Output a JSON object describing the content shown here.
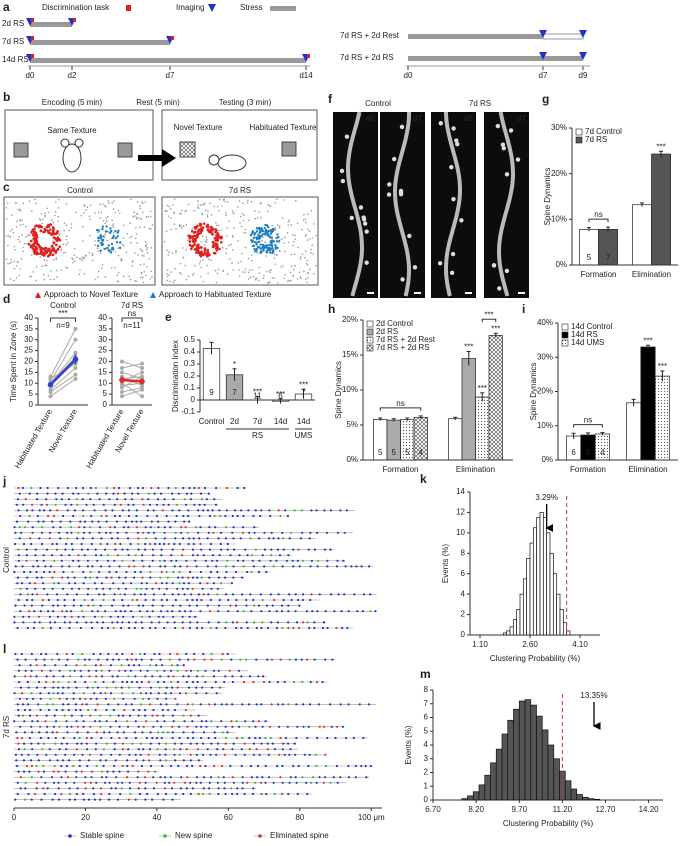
{
  "panel_labels": [
    "a",
    "b",
    "c",
    "d",
    "e",
    "f",
    "g",
    "h",
    "i",
    "j",
    "k",
    "l",
    "m"
  ],
  "panel_a": {
    "legend": {
      "task": "Discrimination task",
      "imaging": "Imaging",
      "stress": "Stress"
    },
    "left_rows": [
      "2d RS",
      "7d RS",
      "14d RS"
    ],
    "left_days": [
      "d0",
      "d2",
      "d7",
      "d14"
    ],
    "right_rows": [
      "7d RS + 2d Rest",
      "7d RS + 2d RS"
    ],
    "right_days": [
      "d0",
      "d7",
      "d9"
    ]
  },
  "panel_b": {
    "phases": [
      "Encoding (5 min)",
      "Rest (5 min)",
      "Testing (3 min)"
    ],
    "same": "Same Texture",
    "novel": "Novel Texture",
    "habituated": "Habituated Texture"
  },
  "panel_c": {
    "groups": [
      "Control",
      "7d RS"
    ],
    "legend": [
      "Approach to Novel Texture",
      "Approach to Habituated Texture"
    ]
  },
  "panel_f": {
    "groups": [
      "Control",
      "7d RS"
    ],
    "days": [
      "d0",
      "d7",
      "d0",
      "d7"
    ]
  },
  "chart_data": [
    {
      "type": "paired",
      "title": "Control",
      "ylabel": "Time Spent in Zone (s)",
      "categories": [
        "Habituated Texture",
        "Novel Texture"
      ],
      "ylim": [
        0,
        40
      ],
      "yticks": [
        0,
        5,
        10,
        15,
        20,
        25,
        30,
        35,
        40
      ],
      "subjects": [
        [
          4,
          12
        ],
        [
          6,
          14
        ],
        [
          7,
          17
        ],
        [
          9,
          20
        ],
        [
          10,
          22
        ],
        [
          10,
          24
        ],
        [
          11,
          30
        ],
        [
          12,
          19
        ],
        [
          13,
          35
        ]
      ],
      "mean": [
        9.3,
        21
      ],
      "mean_error": [
        1,
        2.3
      ],
      "color": "#3340cc",
      "significance": "***",
      "n_label": "n=9"
    },
    {
      "type": "paired",
      "title": "7d RS",
      "categories": [
        "Habituated Texture",
        "Novel Texture"
      ],
      "ylim": [
        0,
        40
      ],
      "yticks": [
        0,
        5,
        10,
        15,
        20,
        25,
        30,
        35,
        40
      ],
      "subjects": [
        [
          4,
          7
        ],
        [
          6,
          8
        ],
        [
          8,
          13
        ],
        [
          9,
          10
        ],
        [
          10,
          4
        ],
        [
          11,
          15
        ],
        [
          12,
          13
        ],
        [
          13,
          9
        ],
        [
          15,
          12
        ],
        [
          17,
          19
        ],
        [
          20,
          17
        ]
      ],
      "mean": [
        11.5,
        10.8
      ],
      "mean_error": [
        1.5,
        1.4
      ],
      "color": "#e02828",
      "significance": "ns",
      "n_label": "n=11"
    },
    {
      "type": "bar",
      "ylabel": "Discrimination Index",
      "categories": [
        "Control",
        "2d",
        "7d",
        "14d",
        "14d"
      ],
      "ylim": [
        -0.1,
        0.5
      ],
      "yticks": [
        -0.1,
        0,
        0.1,
        0.2,
        0.3,
        0.4,
        0.5
      ],
      "groups": [
        {
          "label": "RS",
          "span": [
            1,
            3
          ]
        },
        {
          "label": "UMS",
          "span": [
            4,
            4
          ]
        }
      ],
      "series": [
        {
          "colors": [
            "#ffffff",
            "#aaaaaa",
            "#ffffff",
            "#ffffff",
            "#ffffff"
          ],
          "values": [
            0.43,
            0.21,
            0.0,
            -0.01,
            0.05
          ],
          "errors": [
            0.05,
            0.05,
            0.03,
            0.02,
            0.04
          ],
          "n": [
            9,
            7,
            11,
            6,
            7
          ],
          "stars": [
            null,
            "*",
            "***",
            "***",
            "***"
          ]
        }
      ]
    },
    {
      "type": "bar",
      "ylabel": "Spine Dynamics",
      "categories": [
        "Formation",
        "Elimination"
      ],
      "legend": "top-left",
      "ylim": [
        0,
        30
      ],
      "yticks": [
        {
          "value": 0,
          "label": "0%"
        },
        {
          "value": 10,
          "label": "10%"
        },
        {
          "value": 20,
          "label": "20%"
        },
        {
          "value": 30,
          "label": "30%"
        }
      ],
      "series": [
        {
          "name": "7d Control",
          "color": "#ffffff",
          "values": [
            7.8,
            13.2
          ],
          "errors": [
            0.4,
            0.4
          ],
          "n": [
            5,
            null
          ],
          "stars": [
            null,
            null
          ]
        },
        {
          "name": "7d RS",
          "color": "#555555",
          "values": [
            7.8,
            24.3
          ],
          "errors": [
            0.5,
            0.6
          ],
          "n": [
            7,
            null
          ],
          "stars": [
            null,
            "***"
          ]
        }
      ],
      "annotations": [
        {
          "text": "ns",
          "category": 0
        }
      ]
    },
    {
      "type": "bar",
      "ylabel": "Spine Dynamics",
      "categories": [
        "Formation",
        "Elimination"
      ],
      "legend": "top-left",
      "ylim": [
        0,
        20
      ],
      "yticks": [
        {
          "value": 0,
          "label": "0%"
        },
        {
          "value": 5,
          "label": "5%"
        },
        {
          "value": 10,
          "label": "10%"
        },
        {
          "value": 15,
          "label": "15%"
        },
        {
          "value": 20,
          "label": "20%"
        }
      ],
      "series": [
        {
          "name": "2d Control",
          "color": "#ffffff",
          "values": [
            5.8,
            5.9
          ],
          "errors": [
            0.2,
            0.2
          ],
          "n": [
            5,
            null
          ],
          "stars": [
            null,
            null
          ]
        },
        {
          "name": "2d RS",
          "color": "#aaaaaa",
          "values": [
            5.7,
            14.5
          ],
          "errors": [
            0.2,
            1.0
          ],
          "n": [
            5,
            null
          ],
          "stars": [
            null,
            "***"
          ]
        },
        {
          "name": "7d RS + 2d Rest",
          "color": "#ffffff",
          "pattern": "dotted",
          "values": [
            5.8,
            9.0
          ],
          "errors": [
            0.2,
            0.6
          ],
          "n": [
            5,
            null
          ],
          "stars": [
            null,
            "***"
          ]
        },
        {
          "name": "7d RS + 2d RS",
          "color": "#ffffff",
          "pattern": "crosshatch",
          "values": [
            6.1,
            17.8
          ],
          "errors": [
            0.2,
            0.3
          ],
          "n": [
            4,
            null
          ],
          "stars": [
            null,
            "***"
          ]
        }
      ],
      "annotations": [
        {
          "text": "ns",
          "category": 0
        },
        {
          "text": "***",
          "category": 1,
          "series": [
            2,
            3
          ]
        }
      ]
    },
    {
      "type": "bar",
      "ylabel": "Spine Dynamics",
      "categories": [
        "Formation",
        "Elimination"
      ],
      "legend": "top-left",
      "ylim": [
        0,
        40
      ],
      "yticks": [
        {
          "value": 0,
          "label": "0%"
        },
        {
          "value": 10,
          "label": "10%"
        },
        {
          "value": 20,
          "label": "20%"
        },
        {
          "value": 30,
          "label": "30%"
        },
        {
          "value": 40,
          "label": "40%"
        }
      ],
      "series": [
        {
          "name": "14d Control",
          "color": "#ffffff",
          "values": [
            7.0,
            16.7
          ],
          "errors": [
            0.8,
            1.0
          ],
          "n": [
            6,
            null
          ],
          "stars": [
            null,
            null
          ]
        },
        {
          "name": "14d RS",
          "color": "#000000",
          "values": [
            7.3,
            33
          ],
          "errors": [
            0.6,
            0.5
          ],
          "n": [
            5,
            null
          ],
          "stars": [
            null,
            "***"
          ]
        },
        {
          "name": "14d UMS",
          "color": "#ffffff",
          "pattern": "dotted",
          "values": [
            7.6,
            24.5
          ],
          "errors": [
            0.4,
            1.5
          ],
          "n": [
            4,
            null
          ],
          "stars": [
            null,
            "***"
          ]
        }
      ],
      "annotations": [
        {
          "text": "ns",
          "category": 0
        }
      ]
    },
    {
      "type": "raster",
      "panels": [
        "Control",
        "7d RS"
      ],
      "xlim": [
        0,
        103
      ],
      "xticks": [
        0,
        20,
        40,
        60,
        80,
        {
          "value": 100,
          "label": "100 μm"
        }
      ],
      "series": [
        {
          "name": "Stable spine",
          "color": "#2233cc"
        },
        {
          "name": "New spine",
          "color": "#33bb33"
        },
        {
          "name": "Eliminated spine",
          "color": "#e03030"
        }
      ]
    },
    {
      "type": "histogram",
      "xlabel": "Clustering Probability (%)",
      "ylabel": "Events (%)",
      "color": "#ffffff",
      "xlim": [
        0.8,
        4.7
      ],
      "xticks": [
        {
          "value": 1.1,
          "label": "1.10"
        },
        {
          "value": 2.6,
          "label": "2.60"
        },
        {
          "value": 4.1,
          "label": "4.10"
        }
      ],
      "ylim": [
        0,
        14
      ],
      "yticks": [
        0,
        2,
        4,
        6,
        8,
        10,
        12,
        14
      ],
      "bins": [
        1.8,
        1.9,
        2.0,
        2.1,
        2.2,
        2.3,
        2.4,
        2.5,
        2.6,
        2.7,
        2.8,
        2.9,
        3.0,
        3.1,
        3.2,
        3.3,
        3.4,
        3.5,
        3.6,
        3.7,
        3.8
      ],
      "counts": [
        0.2,
        0.4,
        0.8,
        1.5,
        2.5,
        4,
        5.5,
        7.5,
        9,
        10.5,
        11.5,
        12,
        11.5,
        10,
        8,
        6,
        4,
        2.5,
        1.2,
        0.4
      ],
      "threshold": 3.7,
      "arrow_x": 3.1,
      "arrow_label": "3.29%"
    },
    {
      "type": "histogram",
      "xlabel": "Clustering Probability (%)",
      "ylabel": "Events (%)",
      "color": "#555555",
      "xlim": [
        6.7,
        14.7
      ],
      "xticks": [
        {
          "value": 6.7,
          "label": "6.70"
        },
        {
          "value": 8.2,
          "label": "8.20"
        },
        {
          "value": 9.7,
          "label": "9.70"
        },
        {
          "value": 11.2,
          "label": "11.20"
        },
        {
          "value": 12.7,
          "label": "12.70"
        },
        {
          "value": 14.2,
          "label": "14.20"
        }
      ],
      "ylim": [
        0,
        8
      ],
      "yticks": [
        0,
        1,
        2,
        3,
        4,
        5,
        6,
        7,
        8
      ],
      "bins": [
        7.7,
        7.9,
        8.1,
        8.3,
        8.5,
        8.7,
        8.9,
        9.1,
        9.3,
        9.5,
        9.7,
        9.9,
        10.1,
        10.3,
        10.5,
        10.7,
        10.9,
        11.1,
        11.3,
        11.5,
        11.7,
        11.9,
        12.1,
        12.3,
        12.5
      ],
      "counts": [
        0.1,
        0.3,
        0.6,
        1.1,
        1.8,
        2.7,
        3.7,
        4.8,
        5.8,
        6.6,
        7.2,
        7.3,
        6.9,
        6.1,
        5.1,
        4.0,
        3.0,
        2.1,
        1.4,
        0.8,
        0.4,
        0.2,
        0.1,
        0.05
      ],
      "threshold": 11.2,
      "arrow_x": 12.3,
      "arrow_label": "13.35%"
    }
  ]
}
